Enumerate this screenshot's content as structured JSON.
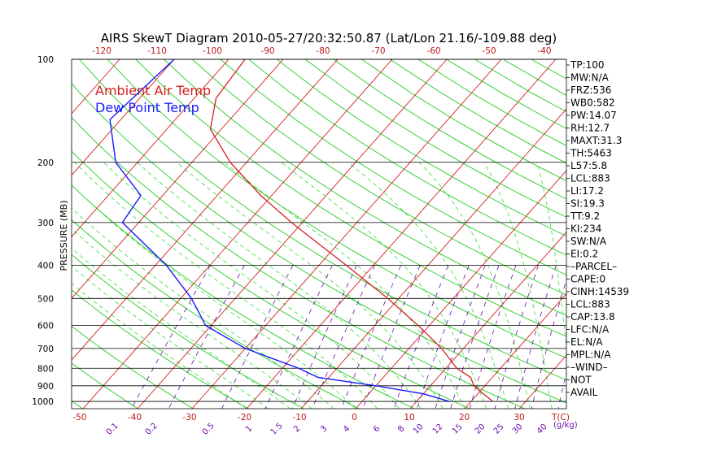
{
  "chart_data": {
    "type": "line",
    "title": "AIRS SkewT Diagram 2010-05-27/20:32:50.87 (Lat/Lon 21.16/-109.88 deg)",
    "ylabel": "PRESSURE (MB)",
    "x_top_ticks": [
      "-120",
      "-110",
      "-100",
      "-90",
      "-80",
      "-70",
      "-60",
      "-50",
      "-40"
    ],
    "x_bottom_ticks": [
      "-50",
      "-40",
      "-30",
      "-20",
      "-10",
      "0",
      "10",
      "20",
      "30"
    ],
    "x_bottom_unit": "T(C)",
    "mixing_ratio_labels": [
      "0.1",
      "0.2",
      "0.5",
      "1",
      "1.5",
      "2",
      "3",
      "4",
      "6",
      "8",
      "10",
      "12",
      "15",
      "20",
      "25",
      "30",
      "40"
    ],
    "mixing_ratio_unit": "(g/kg)",
    "pressure_levels": [
      100,
      200,
      300,
      400,
      500,
      600,
      700,
      800,
      900,
      1000
    ],
    "legend": [
      {
        "name": "Ambient Air Temp",
        "color": "#d42020"
      },
      {
        "name": "Dew Point Temp",
        "color": "#1a1aff"
      }
    ],
    "series": [
      {
        "name": "Ambient Air Temp",
        "color": "#d42020",
        "points": [
          {
            "p": 100,
            "t": -77
          },
          {
            "p": 130,
            "t": -76
          },
          {
            "p": 160,
            "t": -72
          },
          {
            "p": 200,
            "t": -63
          },
          {
            "p": 250,
            "t": -52
          },
          {
            "p": 300,
            "t": -42
          },
          {
            "p": 400,
            "t": -25
          },
          {
            "p": 500,
            "t": -12
          },
          {
            "p": 600,
            "t": -2
          },
          {
            "p": 700,
            "t": 6
          },
          {
            "p": 800,
            "t": 12
          },
          {
            "p": 850,
            "t": 16
          },
          {
            "p": 900,
            "t": 18
          },
          {
            "p": 950,
            "t": 21
          },
          {
            "p": 1000,
            "t": 24
          }
        ]
      },
      {
        "name": "Dew Point Temp",
        "color": "#1a1aff",
        "points": [
          {
            "p": 100,
            "t": -90
          },
          {
            "p": 150,
            "t": -92
          },
          {
            "p": 200,
            "t": -84
          },
          {
            "p": 250,
            "t": -74
          },
          {
            "p": 300,
            "t": -73
          },
          {
            "p": 400,
            "t": -58
          },
          {
            "p": 500,
            "t": -48
          },
          {
            "p": 600,
            "t": -41
          },
          {
            "p": 700,
            "t": -30
          },
          {
            "p": 800,
            "t": -17
          },
          {
            "p": 850,
            "t": -12
          },
          {
            "p": 900,
            "t": 0
          },
          {
            "p": 950,
            "t": 10
          },
          {
            "p": 1000,
            "t": 16
          }
        ]
      }
    ],
    "indices": [
      "TP:100",
      "MW:N/A",
      "FRZ:536",
      "WB0:582",
      "PW:14.07",
      "RH:12.7",
      "MAXT:31.3",
      "TH:5463",
      "L57:5.8",
      "LCL:883",
      "LI:17.2",
      "SI:19.3",
      "TT:9.2",
      "KI:234",
      "SW:N/A",
      "EI:0.2",
      "–PARCEL–",
      "CAPE:0",
      "CINH:14539",
      "LCL:883",
      "CAP:13.8",
      "LFC:N/A",
      "EL:N/A",
      "MPL:N/A",
      "–WIND–",
      "NOT",
      "AVAIL"
    ],
    "colors": {
      "isotherm": "#d42020",
      "dry_adiabat": "#22cc22",
      "moist_adiabat": "#33dd33",
      "mixing_ratio": "#6a0dad",
      "temp_line": "#d42020",
      "dew_line": "#1a1aff"
    }
  }
}
